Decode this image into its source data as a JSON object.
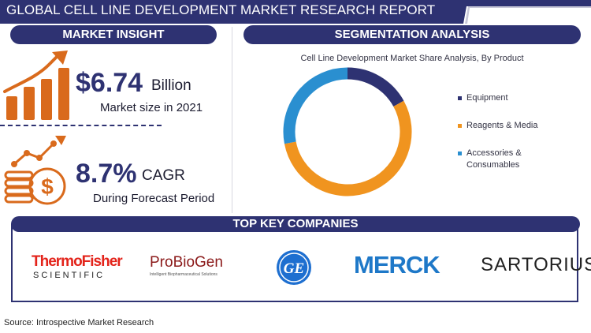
{
  "banner": {
    "title": "GLOBAL CELL LINE DEVELOPMENT MARKET RESEARCH REPORT"
  },
  "insight": {
    "header": "MARKET INSIGHT",
    "market_value": "$6.74",
    "market_unit": "Billion",
    "market_label": "Market size in 2021",
    "cagr_value": "8.7%",
    "cagr_label": "CAGR",
    "cagr_sub": "During Forecast Period"
  },
  "segmentation": {
    "header": "SEGMENTATION ANALYSIS"
  },
  "chart_data": {
    "type": "pie",
    "title": "Cell Line Development Market Share Analysis, By Product",
    "donut": true,
    "legend_position": "right",
    "series": [
      {
        "name": "Equipment",
        "value": 17,
        "color": "#2e3272"
      },
      {
        "name": "Reagents & Media",
        "value": 55,
        "color": "#f0941f"
      },
      {
        "name": "Accessories & Consumables",
        "value": 28,
        "color": "#2a8fd0"
      }
    ]
  },
  "legend": {
    "equipment": "Equipment",
    "reagents": "Reagents & Media",
    "accessories_1": "Accessories &",
    "accessories_2": "Consumables"
  },
  "companies": {
    "header": "TOP KEY COMPANIES",
    "thermo_1": "ThermoFisher",
    "thermo_2": "SCIENTIFIC",
    "probiogen": "ProBioGen",
    "probiogen_tag": "Intelligent Biopharmaceutical Solutions",
    "ge": "GE",
    "merck": "MERCK",
    "sartorius": "SARTORIUS"
  },
  "source": "Source: Introspective Market Research",
  "colors": {
    "navy": "#2e3272",
    "orange": "#f0941f",
    "blue": "#2a8fd0",
    "thermo_red": "#e3241b",
    "merck_blue": "#1e78c8"
  }
}
